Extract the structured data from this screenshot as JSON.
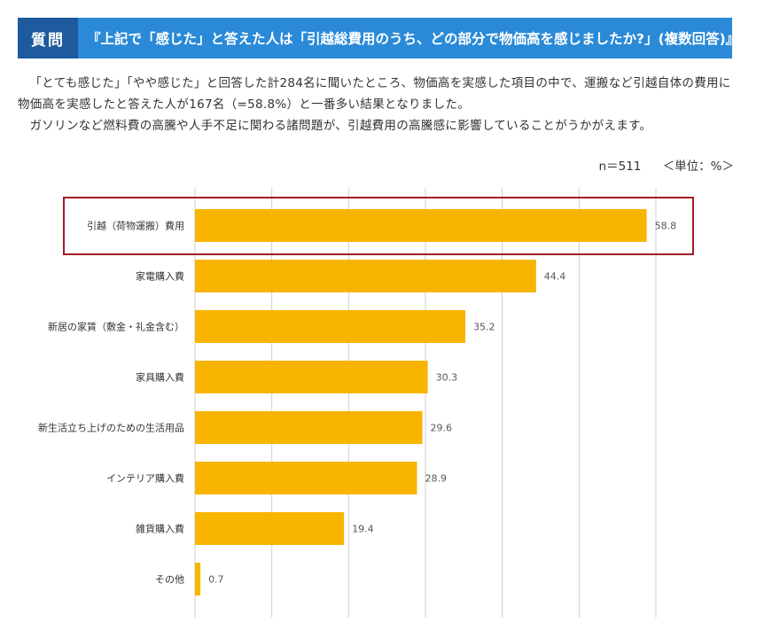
{
  "header": {
    "badge": "質問",
    "question": "『上記で「感じた」と答えた人は「引越総費用のうち、どの部分で物価高を感じましたか?」(複数回答)』"
  },
  "body": {
    "paragraph1": "「とても感じた」「やや感じた」と回答した計284名に聞いたところ、物価高を実感した項目の中で、運搬など引越自体の費用に物価高を実感したと答えた人が167名（=58.8%）と一番多い結果となりました。",
    "paragraph2": "ガソリンなど燃料費の高騰や人手不足に関わる諸問題が、引越費用の高騰感に影響していることがうかがえます。"
  },
  "meta": {
    "n": "n＝511",
    "unit": "＜単位：%＞"
  },
  "chart_data": {
    "type": "bar",
    "orientation": "horizontal",
    "categories": [
      "引越（荷物運搬）費用",
      "家電購入費",
      "新居の家賃（敷金・礼金含む）",
      "家具購入費",
      "新生活立ち上げのための生活用品",
      "インテリア購入費",
      "雑貨購入費",
      "その他"
    ],
    "values": [
      58.8,
      44.4,
      35.2,
      30.3,
      29.6,
      28.9,
      19.4,
      0.7
    ],
    "value_labels": [
      "58.8",
      "44.4",
      "35.2",
      "30.3",
      "29.6",
      "28.9",
      "19.4",
      "0.7"
    ],
    "xlim": [
      0,
      60
    ],
    "grid": true,
    "highlight_index": 0,
    "colors": {
      "bar": "#f7b500",
      "highlight_border": "#a31d24",
      "grid": "#cfcfcf"
    }
  }
}
